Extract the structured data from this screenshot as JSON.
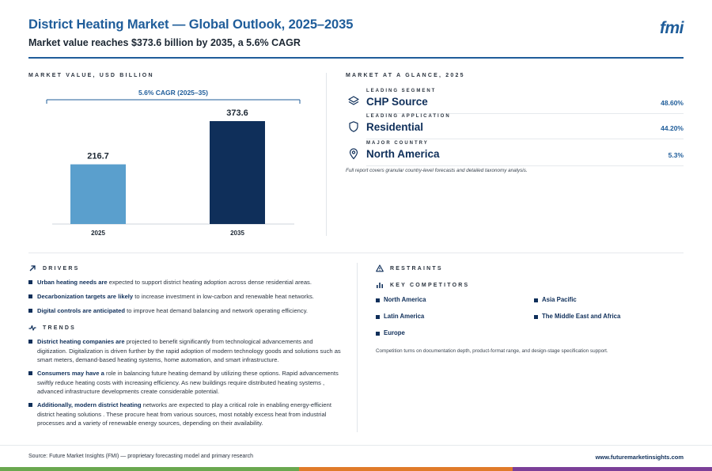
{
  "header": {
    "title": "District Heating Market — Global Outlook, 2025–2035",
    "subtitle": "Market value reaches $373.6 billion by 2035, a 5.6% CAGR",
    "logo": "fmi"
  },
  "chart_panel": {
    "label": "MARKET VALUE, USD BILLION",
    "cagr_label": "5.6% CAGR (2025–35)"
  },
  "chart_data": {
    "type": "bar",
    "categories": [
      "2025",
      "2035"
    ],
    "values": [
      216.7,
      373.6
    ],
    "value_labels": [
      "216.7",
      "373.6"
    ],
    "title": "",
    "xlabel": "",
    "ylabel": "",
    "ylim": [
      0,
      373.6
    ],
    "grid": false,
    "colors": [
      "#5a9fcd",
      "#0f2f5a"
    ]
  },
  "glance": {
    "label": "MARKET AT A GLANCE, 2025",
    "rows": [
      {
        "kicker": "LEADING SEGMENT",
        "name": "CHP Source",
        "value": "48.60%",
        "icon": "layers-icon"
      },
      {
        "kicker": "LEADING APPLICATION",
        "name": "Residential",
        "value": "44.20%",
        "icon": "shield-icon"
      },
      {
        "kicker": "MAJOR COUNTRY",
        "name": "North America",
        "value": "5.3%",
        "icon": "location-pin-icon"
      }
    ],
    "footnote": "Full report covers granular country-level forecasts and detailed taxonomy analysis."
  },
  "drivers": {
    "label": "DRIVERS",
    "items": [
      {
        "bold": "Urban heating needs are",
        "rest": " expected to support district heating adoption across dense residential areas."
      },
      {
        "bold": "Decarbonization targets are likely",
        "rest": " to increase investment in low-carbon and renewable heat networks."
      },
      {
        "bold": "Digital controls are anticipated",
        "rest": " to improve heat demand balancing and network operating efficiency."
      }
    ]
  },
  "trends": {
    "label": "TRENDS",
    "items": [
      {
        "bold": "District heating companies are",
        "rest": " projected to benefit significantly from technological advancements and digitization. Digitalization is driven further by the rapid adoption of modern technology goods and solutions such as smart meters, demand-based heating systems, home automation, and smart infrastructure."
      },
      {
        "bold": "Consumers may have a",
        "rest": " role in balancing future heating demand by utilizing these options. Rapid advancements swiftly reduce heating costs with increasing efficiency. As new buildings require distributed heating systems , advanced infrastructure developments create considerable potential."
      },
      {
        "bold": "Additionally, modern district heating",
        "rest": " networks are expected to play a critical role in enabling energy-efficient district heating solutions . These procure heat from various sources, most notably excess heat from industrial processes and a variety of renewable energy sources, depending on their availability."
      }
    ]
  },
  "restraints": {
    "label": "RESTRAINTS"
  },
  "competitors": {
    "label": "KEY COMPETITORS",
    "items": [
      "North America",
      "Asia Pacific",
      "Latin America",
      "The Middle East and Africa",
      "Europe"
    ],
    "note": "Competition turns on documentation depth, product-format range, and design-stage specification support."
  },
  "footer": {
    "source": "Source: Future Market Insights (FMI) — proprietary forecasting model and primary research",
    "site": "www.futuremarketinsights.com",
    "bar_colors": [
      "#6aa84f",
      "#e07b2a",
      "#7b3f98"
    ]
  }
}
